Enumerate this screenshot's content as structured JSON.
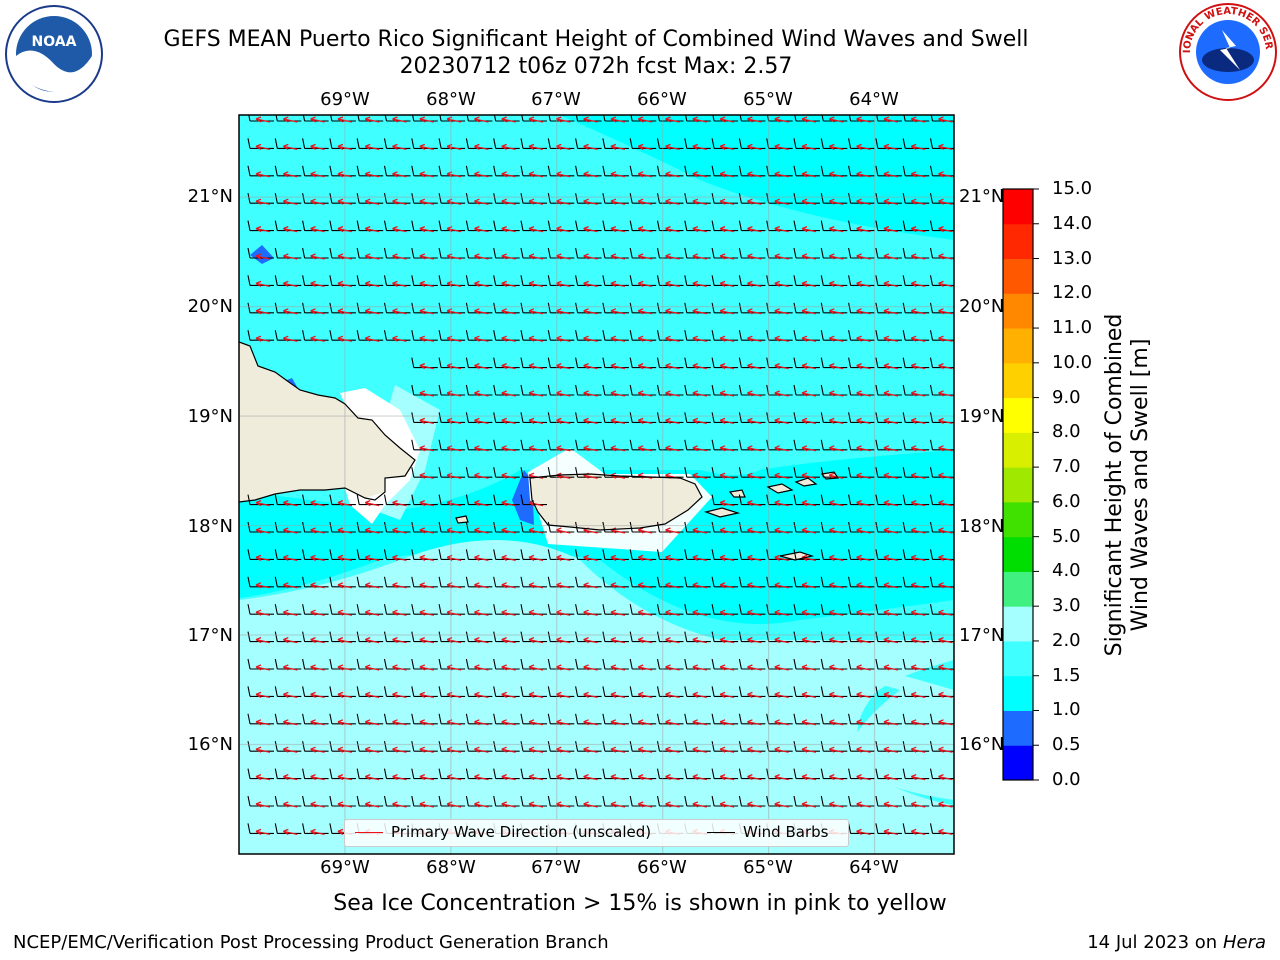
{
  "title": {
    "line1": "GEFS MEAN Puerto Rico Significant Height of Combined Wind Waves and Swell",
    "line2": "20230712 t06z 072h fcst   Max: 2.57"
  },
  "logos": {
    "left": "noaa-logo",
    "right": "nws-logo",
    "left_text": "NOAA",
    "right_text": "NATIONAL WEATHER SERVICE"
  },
  "map": {
    "lon_labels": [
      "69°W",
      "68°W",
      "67°W",
      "66°W",
      "65°W",
      "64°W"
    ],
    "lat_labels": [
      "21°N",
      "20°N",
      "19°N",
      "18°N",
      "17°N",
      "16°N"
    ],
    "lon_range": [
      -70.0,
      -63.25
    ],
    "lat_range": [
      15.0,
      21.75
    ],
    "gridlines": true,
    "barb_direction": "from east (easterly trade winds)",
    "wave_direction": "westward"
  },
  "legend": {
    "wave_dir": "Primary Wave Direction (unscaled)",
    "barbs": "Wind Barbs",
    "wave_dir_color": "#e8141c",
    "barbs_color": "#000000"
  },
  "colorbar": {
    "label_line1": "Significant Height of Combined",
    "label_line2": "Wind Waves and Swell [m]",
    "ticks": [
      "0.0",
      "0.5",
      "1.0",
      "1.5",
      "2.0",
      "3.0",
      "4.0",
      "5.0",
      "6.0",
      "7.0",
      "8.0",
      "9.0",
      "10.0",
      "11.0",
      "12.0",
      "13.0",
      "14.0",
      "15.0"
    ],
    "colors": [
      "#0000ff",
      "#1e6cff",
      "#00ffff",
      "#40ffff",
      "#a6ffff",
      "#40f080",
      "#00dd00",
      "#40e000",
      "#a0e800",
      "#d8f000",
      "#ffff00",
      "#ffd000",
      "#ffb000",
      "#ff8800",
      "#ff5800",
      "#ff2800",
      "#ff0000"
    ]
  },
  "field_colors": {
    "land": "#efecdc",
    "ocean_low": "#00ffff",
    "ocean_mid": "#40ffff",
    "ocean_high": "#a6ffff",
    "shallow_blue": "#1e6cff"
  },
  "footer": {
    "ice_note": "Sea Ice Concentration > 15% is shown in pink to yellow",
    "credit": "NCEP/EMC/Verification Post Processing Product Generation Branch",
    "date": "14 Jul 2023 on ",
    "machine": "Hera"
  }
}
